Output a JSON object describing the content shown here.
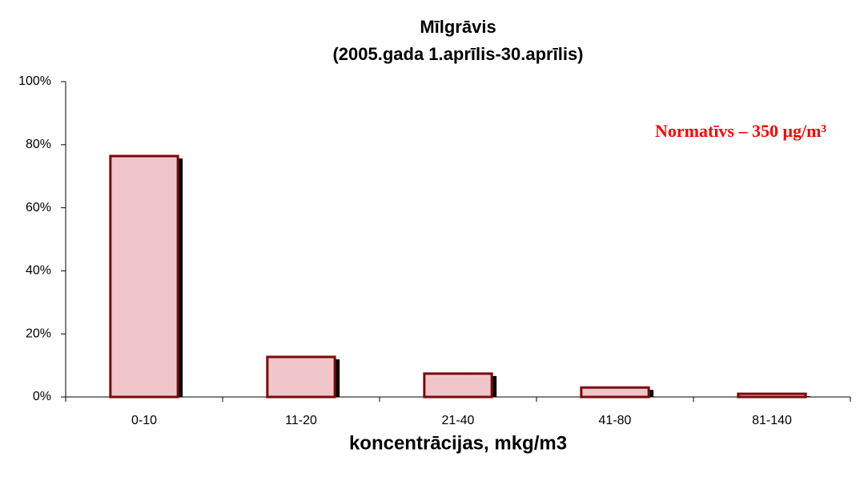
{
  "chart_data": {
    "type": "bar",
    "title": "Mīlgrāvis",
    "subtitle": "(2005.gada 1.aprīlis-30.aprīlis)",
    "x_label": "koncentrācijas, mkg/m3",
    "annotation": "Normatīvs – 350 μg/m³",
    "categories": [
      "0-10",
      "11-20",
      "21-40",
      "41-80",
      "81-140"
    ],
    "values": [
      76.4,
      12.7,
      7.4,
      3.0,
      1.0
    ],
    "color": "#f0c6ca",
    "edge_color": "#7a0a0a",
    "ylim": [
      0,
      100
    ],
    "yticks": [
      {
        "value": 0,
        "label": "0%"
      },
      {
        "value": 20,
        "label": "20%"
      },
      {
        "value": 40,
        "label": "40%"
      },
      {
        "value": 60,
        "label": "60%"
      },
      {
        "value": 80,
        "label": "80%"
      },
      {
        "value": 100,
        "label": "100%"
      }
    ],
    "grid": false
  }
}
